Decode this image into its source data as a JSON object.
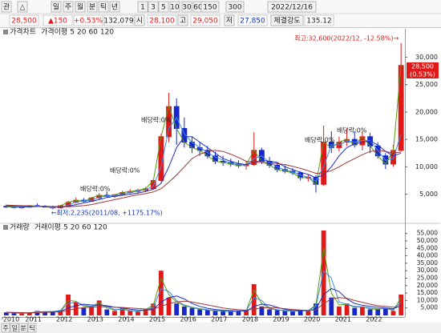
{
  "toolbar": {
    "row1": [
      "관",
      "△",
      "일",
      "주",
      "월",
      "분",
      "틱",
      "년",
      "1",
      "3",
      "5",
      "10",
      "30",
      "60",
      "150",
      "300",
      "2022/12/16"
    ],
    "row2": [
      "28,500",
      "▲150",
      "+0.53%",
      "132,079",
      "시",
      "28,100",
      "고",
      "29,050",
      "저",
      "27,850",
      "체결강도",
      "135.12"
    ],
    "bottom_tabs": [
      "주",
      "일",
      "분",
      "틱"
    ]
  },
  "chart_data": [
    {
      "type": "candlestick",
      "title": "가격차트",
      "ma_label": "가격이평",
      "up_color": "#e01818",
      "down_color": "#1828c8",
      "values": [
        [
          2800,
          3100,
          2500,
          2700
        ],
        [
          2700,
          2900,
          2400,
          2600
        ],
        [
          2600,
          2800,
          2400,
          2650
        ],
        [
          2650,
          3000,
          2500,
          2900
        ],
        [
          2900,
          3300,
          2700,
          2800
        ],
        [
          2800,
          3000,
          2600,
          2750
        ],
        [
          2750,
          2900,
          2235,
          2500
        ],
        [
          2500,
          3000,
          2400,
          2900
        ],
        [
          2900,
          3800,
          2800,
          3500
        ],
        [
          3500,
          4400,
          3300,
          3900
        ],
        [
          3900,
          4300,
          3500,
          3700
        ],
        [
          3700,
          4500,
          3600,
          4300
        ],
        [
          4300,
          5200,
          4100,
          4800
        ],
        [
          4800,
          5500,
          4400,
          4600
        ],
        [
          4600,
          5000,
          4300,
          4900
        ],
        [
          4900,
          5600,
          4700,
          5300
        ],
        [
          5300,
          5900,
          5000,
          5500
        ],
        [
          5500,
          6000,
          5200,
          5700
        ],
        [
          5700,
          6300,
          5400,
          6000
        ],
        [
          6000,
          7800,
          5800,
          7500
        ],
        [
          7500,
          16000,
          7300,
          15500
        ],
        [
          15500,
          23500,
          14500,
          21000
        ],
        [
          21000,
          22500,
          14000,
          17000
        ],
        [
          17000,
          19000,
          13500,
          14500
        ],
        [
          14500,
          15500,
          12500,
          13500
        ],
        [
          13500,
          14500,
          12000,
          13000
        ],
        [
          13000,
          13800,
          11500,
          12000
        ],
        [
          12000,
          12800,
          10500,
          11000
        ],
        [
          11000,
          12000,
          10200,
          10800
        ],
        [
          10800,
          11500,
          10000,
          10500
        ],
        [
          10500,
          11200,
          9800,
          10200
        ],
        [
          10200,
          11000,
          9500,
          10400
        ],
        [
          10400,
          16300,
          10200,
          13000
        ],
        [
          13000,
          13500,
          10500,
          11000
        ],
        [
          11000,
          11800,
          9800,
          10300
        ],
        [
          10300,
          10800,
          9000,
          9500
        ],
        [
          9500,
          10300,
          8800,
          9200
        ],
        [
          9200,
          9800,
          8500,
          8900
        ],
        [
          8900,
          9200,
          7500,
          8000
        ],
        [
          8000,
          8600,
          7300,
          8100
        ],
        [
          8100,
          8500,
          5300,
          6800
        ],
        [
          6800,
          17500,
          6500,
          14500
        ],
        [
          14500,
          16500,
          12500,
          13500
        ],
        [
          13500,
          15500,
          12800,
          14500
        ],
        [
          14500,
          17000,
          13800,
          15000
        ],
        [
          15000,
          16500,
          13500,
          14000
        ],
        [
          14000,
          16500,
          13000,
          15500
        ],
        [
          15500,
          16200,
          12500,
          13800
        ],
        [
          13800,
          14500,
          11500,
          12000
        ],
        [
          12000,
          12500,
          9600,
          10500
        ],
        [
          10500,
          14000,
          10000,
          13000
        ],
        [
          13000,
          32600,
          12800,
          28500
        ]
      ],
      "series": [
        {
          "name": "5",
          "color": "#5a9a10",
          "values": [
            2700,
            2600,
            2650,
            2900,
            2800,
            2750,
            2500,
            2900,
            3500,
            3900,
            3700,
            4300,
            4800,
            4600,
            4900,
            5300,
            5500,
            5700,
            6000,
            7500,
            15500,
            21000,
            17000,
            14500,
            13500,
            13000,
            12000,
            11000,
            10800,
            10500,
            10200,
            10400,
            13000,
            11000,
            10300,
            9500,
            9200,
            8900,
            8000,
            8100,
            6800,
            14500,
            13500,
            14500,
            15000,
            14000,
            15500,
            13800,
            12000,
            10500,
            13000,
            28500
          ]
        },
        {
          "name": "20",
          "color": "#3c8ce0",
          "values": [
            2800,
            2700,
            2650,
            2700,
            2800,
            2800,
            2650,
            2600,
            3000,
            3600,
            3800,
            3900,
            4400,
            4700,
            4700,
            5000,
            5300,
            5600,
            5800,
            6500,
            10000,
            17000,
            19000,
            16000,
            14500,
            13500,
            12600,
            11800,
            11200,
            10700,
            10400,
            10300,
            11500,
            12000,
            10800,
            10000,
            9400,
            9100,
            8500,
            8100,
            7400,
            10000,
            14000,
            14000,
            14700,
            14500,
            14800,
            14800,
            13000,
            11200,
            11500,
            16000
          ]
        },
        {
          "name": "60",
          "color": "#2030c0",
          "values": [
            2900,
            2800,
            2750,
            2700,
            2750,
            2750,
            2700,
            2650,
            2800,
            3100,
            3400,
            3700,
            4000,
            4400,
            4600,
            4800,
            5000,
            5200,
            5500,
            5900,
            7000,
            10000,
            13500,
            15500,
            15500,
            14500,
            13500,
            12500,
            11500,
            11000,
            10600,
            10400,
            10800,
            11200,
            11000,
            10800,
            10000,
            9500,
            9000,
            8600,
            8000,
            8500,
            10000,
            12000,
            13500,
            14200,
            14500,
            14700,
            14000,
            12800,
            12000,
            12500
          ]
        },
        {
          "name": "120",
          "color": "#a03838",
          "values": [
            3000,
            2950,
            2900,
            2850,
            2800,
            2780,
            2750,
            2700,
            2700,
            2800,
            2900,
            3100,
            3400,
            3700,
            4000,
            4300,
            4600,
            4900,
            5100,
            5400,
            6000,
            7200,
            8500,
            10000,
            11500,
            12300,
            12800,
            13000,
            12800,
            12300,
            11700,
            11000,
            10800,
            10800,
            10700,
            10600,
            10400,
            10100,
            9700,
            9300,
            8800,
            8900,
            9300,
            10000,
            10800,
            11500,
            12200,
            12800,
            13000,
            12800,
            12500,
            12700
          ]
        }
      ],
      "ylim": [
        700,
        34900
      ],
      "yticks": [
        {
          "value": 5000,
          "label": "5,000"
        },
        {
          "value": 10000,
          "label": "10,000"
        },
        {
          "value": 15000,
          "label": "15,000"
        },
        {
          "value": 20000,
          "label": "20,000"
        },
        {
          "value": 25000,
          "label": "25,000"
        },
        {
          "value": 30000,
          "label": "30,000"
        }
      ],
      "high_label": "최고:32,600(2022/12, -12.58%)→",
      "low_label": "←최저:2,235(2011/08, +1175.17%)",
      "dividend_labels": [
        "배당락:0%",
        "배당락:0%",
        "배당락:0%",
        "배당락:0%",
        "배당락:0%"
      ],
      "last_price_label": "28,500",
      "last_change_label": "(0.53%)"
    },
    {
      "type": "bar",
      "title": "거래량",
      "ma_label": "거래이평",
      "up_color": "#e01818",
      "down_color": "#1828c8",
      "categories": [
        "2010",
        null,
        null,
        null,
        "2011",
        null,
        null,
        null,
        "2012",
        null,
        null,
        null,
        "2013",
        null,
        null,
        null,
        "2014",
        null,
        null,
        null,
        "2015",
        null,
        null,
        null,
        "2016",
        null,
        null,
        null,
        "2017",
        null,
        null,
        null,
        "2018",
        null,
        null,
        null,
        "2019",
        null,
        null,
        null,
        "2020",
        null,
        null,
        null,
        "2021",
        null,
        null,
        null,
        "2022",
        null,
        null,
        null
      ],
      "values": [
        2000,
        1500,
        1200,
        1800,
        3000,
        2000,
        2500,
        3500,
        14000,
        9000,
        5000,
        6000,
        10000,
        4000,
        3000,
        5000,
        3000,
        2500,
        4000,
        8000,
        30000,
        12000,
        8000,
        6000,
        5000,
        4000,
        3500,
        3000,
        3000,
        2500,
        2800,
        3500,
        21000,
        6000,
        4000,
        3500,
        3000,
        2500,
        3500,
        3000,
        8000,
        57000,
        12000,
        6000,
        8000,
        5000,
        6000,
        4000,
        4000,
        5000,
        3000,
        14000
      ],
      "series": [
        {
          "name": "5",
          "color": "#5a9a10",
          "values": [
            1900,
            1600,
            1400,
            1700,
            2600,
            2300,
            2500,
            3200,
            10000,
            9500,
            6000,
            6000,
            8500,
            5000,
            3500,
            4500,
            3200,
            2700,
            3800,
            7000,
            25000,
            14000,
            9000,
            6500,
            5200,
            4200,
            3600,
            3100,
            3000,
            2600,
            2800,
            3300,
            17000,
            8000,
            4500,
            3700,
            3100,
            2700,
            3300,
            3100,
            7000,
            45000,
            15000,
            7000,
            7500,
            5500,
            5800,
            4300,
            4100,
            4800,
            3300,
            12000
          ]
        },
        {
          "name": "20",
          "color": "#3c8ce0",
          "values": [
            2000,
            1700,
            1500,
            1600,
            2300,
            2500,
            2600,
            3000,
            8000,
            9000,
            7000,
            6000,
            7000,
            6000,
            4000,
            4000,
            3200,
            2800,
            3500,
            5500,
            18000,
            16000,
            10000,
            7000,
            5500,
            4500,
            3800,
            3300,
            3000,
            2800,
            2800,
            3200,
            12000,
            10000,
            5000,
            3800,
            3200,
            2800,
            3200,
            3100,
            6000,
            30000,
            25000,
            9000,
            7500,
            6000,
            5800,
            5000,
            4500,
            4600,
            4000,
            9000
          ]
        },
        {
          "name": "60",
          "color": "#2030c0",
          "values": [
            2000,
            1900,
            1700,
            1600,
            1900,
            2200,
            2400,
            2700,
            5000,
            6500,
            7500,
            7000,
            7000,
            6500,
            5500,
            5000,
            4200,
            3600,
            3500,
            4000,
            9000,
            12000,
            13000,
            11000,
            8000,
            6000,
            4800,
            4000,
            3500,
            3200,
            3000,
            3000,
            6000,
            7500,
            7000,
            5500,
            4000,
            3300,
            3200,
            3200,
            4200,
            14000,
            18000,
            16000,
            11000,
            8000,
            6800,
            6000,
            5500,
            5000,
            4500,
            6500
          ]
        },
        {
          "name": "120",
          "color": "#a03838",
          "values": [
            2000,
            2000,
            1900,
            1800,
            1900,
            2000,
            2200,
            2400,
            3500,
            4500,
            5200,
            5600,
            5800,
            5800,
            5500,
            5300,
            5000,
            4600,
            4300,
            4300,
            6000,
            8000,
            9000,
            9500,
            9000,
            8000,
            7000,
            6000,
            5000,
            4300,
            3800,
            3500,
            4200,
            5000,
            5300,
            5000,
            4500,
            4000,
            3600,
            3400,
            3600,
            8000,
            11000,
            12000,
            11500,
            10000,
            8800,
            7500,
            6500,
            6000,
            5500,
            6000
          ]
        }
      ],
      "ylim": [
        0,
        60200
      ],
      "yticks": [
        {
          "value": 5000,
          "label": "5,000"
        },
        {
          "value": 10000,
          "label": "10,000"
        },
        {
          "value": 15000,
          "label": "15,000"
        },
        {
          "value": 20000,
          "label": "20,000"
        },
        {
          "value": 25000,
          "label": "25,000"
        },
        {
          "value": 30000,
          "label": "30,000"
        },
        {
          "value": 35000,
          "label": "35,000"
        },
        {
          "value": 40000,
          "label": "40,000"
        },
        {
          "value": 45000,
          "label": "45,000"
        },
        {
          "value": 50000,
          "label": "50,000"
        },
        {
          "value": 55000,
          "label": "55,000"
        }
      ]
    }
  ]
}
